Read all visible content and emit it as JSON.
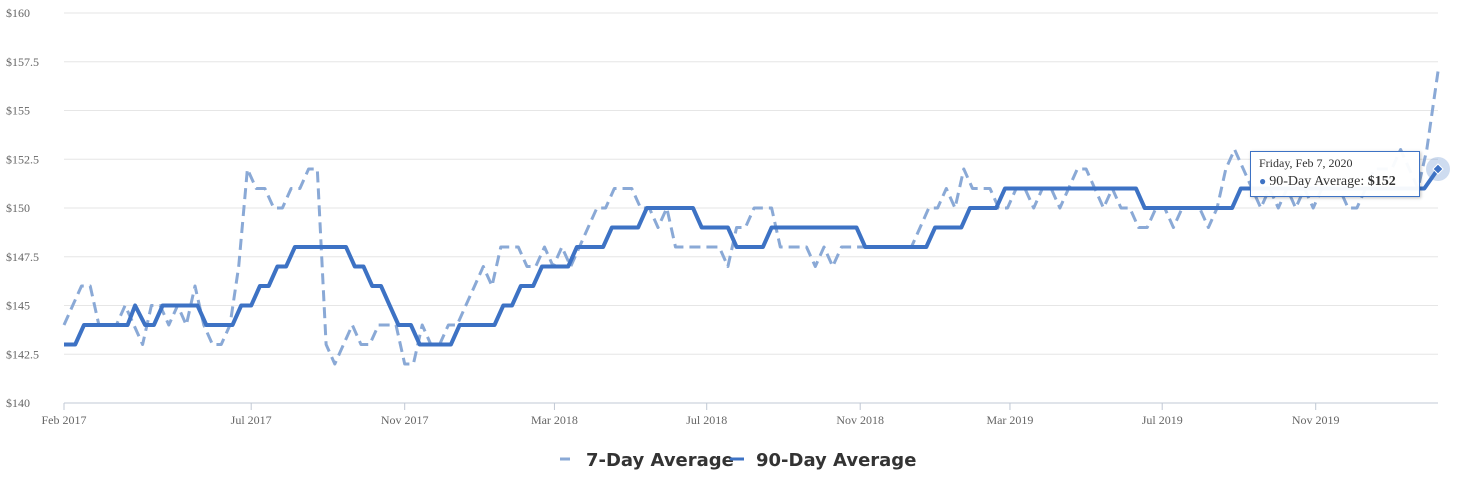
{
  "chart_data": {
    "type": "line",
    "title": "",
    "xlabel": "",
    "ylabel": "",
    "x_ticks": [
      "Feb 2017",
      "Jul 2017",
      "Nov 2017",
      "Mar 2018",
      "Jul 2018",
      "Nov 2018",
      "Mar 2019",
      "Jul 2019",
      "Nov 2019"
    ],
    "y_ticks": [
      "$140",
      "$142.5",
      "$145",
      "$147.5",
      "$150",
      "$152.5",
      "$155",
      "$157.5",
      "$160"
    ],
    "ylim": [
      140,
      160
    ],
    "xlim": [
      "2017-02-01",
      "2020-02-07"
    ],
    "grid": "horizontal",
    "legend_position": "bottom-center",
    "series": [
      {
        "name": "7-Day Average",
        "color": "#8aa9d6",
        "style": "dashed",
        "points": [
          [
            "2017-02-01",
            144
          ],
          [
            "2017-02-08",
            145
          ],
          [
            "2017-02-15",
            146
          ],
          [
            "2017-02-22",
            146
          ],
          [
            "2017-03-01",
            144
          ],
          [
            "2017-03-08",
            144
          ],
          [
            "2017-03-15",
            144
          ],
          [
            "2017-03-22",
            145
          ],
          [
            "2017-03-29",
            144
          ],
          [
            "2017-04-05",
            143
          ],
          [
            "2017-04-12",
            145
          ],
          [
            "2017-04-19",
            145
          ],
          [
            "2017-04-26",
            144
          ],
          [
            "2017-05-03",
            145
          ],
          [
            "2017-05-10",
            144
          ],
          [
            "2017-05-17",
            146
          ],
          [
            "2017-05-24",
            144
          ],
          [
            "2017-05-31",
            143
          ],
          [
            "2017-06-07",
            143
          ],
          [
            "2017-06-14",
            144
          ],
          [
            "2017-06-21",
            147
          ],
          [
            "2017-06-28",
            152
          ],
          [
            "2017-07-05",
            151
          ],
          [
            "2017-07-12",
            151
          ],
          [
            "2017-07-19",
            150
          ],
          [
            "2017-07-26",
            150
          ],
          [
            "2017-08-02",
            151
          ],
          [
            "2017-08-09",
            151
          ],
          [
            "2017-08-16",
            152
          ],
          [
            "2017-08-23",
            152
          ],
          [
            "2017-08-30",
            143
          ],
          [
            "2017-09-06",
            142
          ],
          [
            "2017-09-13",
            143
          ],
          [
            "2017-09-20",
            144
          ],
          [
            "2017-09-27",
            143
          ],
          [
            "2017-10-04",
            143
          ],
          [
            "2017-10-11",
            144
          ],
          [
            "2017-10-18",
            144
          ],
          [
            "2017-10-25",
            144
          ],
          [
            "2017-11-01",
            142
          ],
          [
            "2017-11-08",
            142
          ],
          [
            "2017-11-15",
            144
          ],
          [
            "2017-11-22",
            143
          ],
          [
            "2017-11-29",
            143
          ],
          [
            "2017-12-06",
            144
          ],
          [
            "2017-12-13",
            144
          ],
          [
            "2017-12-20",
            145
          ],
          [
            "2017-12-27",
            146
          ],
          [
            "2018-01-03",
            147
          ],
          [
            "2018-01-10",
            146
          ],
          [
            "2018-01-17",
            148
          ],
          [
            "2018-01-24",
            148
          ],
          [
            "2018-01-31",
            148
          ],
          [
            "2018-02-07",
            147
          ],
          [
            "2018-02-14",
            147
          ],
          [
            "2018-02-21",
            148
          ],
          [
            "2018-02-28",
            147
          ],
          [
            "2018-03-07",
            148
          ],
          [
            "2018-03-14",
            147
          ],
          [
            "2018-03-21",
            148
          ],
          [
            "2018-03-28",
            149
          ],
          [
            "2018-04-04",
            150
          ],
          [
            "2018-04-11",
            150
          ],
          [
            "2018-04-18",
            151
          ],
          [
            "2018-04-25",
            151
          ],
          [
            "2018-05-02",
            151
          ],
          [
            "2018-05-09",
            150
          ],
          [
            "2018-05-16",
            150
          ],
          [
            "2018-05-23",
            149
          ],
          [
            "2018-05-30",
            150
          ],
          [
            "2018-06-06",
            148
          ],
          [
            "2018-06-13",
            148
          ],
          [
            "2018-06-20",
            148
          ],
          [
            "2018-06-27",
            148
          ],
          [
            "2018-07-04",
            148
          ],
          [
            "2018-07-11",
            148
          ],
          [
            "2018-07-18",
            147
          ],
          [
            "2018-07-25",
            149
          ],
          [
            "2018-08-01",
            149
          ],
          [
            "2018-08-08",
            150
          ],
          [
            "2018-08-15",
            150
          ],
          [
            "2018-08-22",
            150
          ],
          [
            "2018-08-29",
            148
          ],
          [
            "2018-09-05",
            148
          ],
          [
            "2018-09-12",
            148
          ],
          [
            "2018-09-19",
            148
          ],
          [
            "2018-09-26",
            147
          ],
          [
            "2018-10-03",
            148
          ],
          [
            "2018-10-10",
            147
          ],
          [
            "2018-10-17",
            148
          ],
          [
            "2018-10-24",
            148
          ],
          [
            "2018-10-31",
            148
          ],
          [
            "2018-11-07",
            148
          ],
          [
            "2018-11-14",
            148
          ],
          [
            "2018-11-21",
            148
          ],
          [
            "2018-11-28",
            148
          ],
          [
            "2018-12-05",
            148
          ],
          [
            "2018-12-12",
            148
          ],
          [
            "2018-12-19",
            149
          ],
          [
            "2018-12-26",
            150
          ],
          [
            "2019-01-02",
            150
          ],
          [
            "2019-01-09",
            151
          ],
          [
            "2019-01-16",
            150
          ],
          [
            "2019-01-23",
            152
          ],
          [
            "2019-01-30",
            151
          ],
          [
            "2019-02-06",
            151
          ],
          [
            "2019-02-13",
            151
          ],
          [
            "2019-02-20",
            150
          ],
          [
            "2019-02-27",
            150
          ],
          [
            "2019-03-06",
            151
          ],
          [
            "2019-03-13",
            151
          ],
          [
            "2019-03-20",
            150
          ],
          [
            "2019-03-27",
            151
          ],
          [
            "2019-04-03",
            151
          ],
          [
            "2019-04-10",
            150
          ],
          [
            "2019-04-17",
            151
          ],
          [
            "2019-04-24",
            152
          ],
          [
            "2019-05-01",
            152
          ],
          [
            "2019-05-08",
            151
          ],
          [
            "2019-05-15",
            150
          ],
          [
            "2019-05-22",
            151
          ],
          [
            "2019-05-29",
            150
          ],
          [
            "2019-06-05",
            150
          ],
          [
            "2019-06-12",
            149
          ],
          [
            "2019-06-19",
            149
          ],
          [
            "2019-06-26",
            150
          ],
          [
            "2019-07-03",
            150
          ],
          [
            "2019-07-10",
            149
          ],
          [
            "2019-07-17",
            150
          ],
          [
            "2019-07-24",
            150
          ],
          [
            "2019-07-31",
            150
          ],
          [
            "2019-08-07",
            149
          ],
          [
            "2019-08-14",
            150
          ],
          [
            "2019-08-21",
            152
          ],
          [
            "2019-08-28",
            153
          ],
          [
            "2019-09-04",
            152
          ],
          [
            "2019-09-11",
            151
          ],
          [
            "2019-09-18",
            150
          ],
          [
            "2019-09-25",
            151
          ],
          [
            "2019-10-02",
            150
          ],
          [
            "2019-10-09",
            151
          ],
          [
            "2019-10-16",
            150
          ],
          [
            "2019-10-23",
            151
          ],
          [
            "2019-10-30",
            150
          ],
          [
            "2019-11-06",
            151
          ],
          [
            "2019-11-13",
            151
          ],
          [
            "2019-11-20",
            151
          ],
          [
            "2019-11-27",
            150
          ],
          [
            "2019-12-04",
            150
          ],
          [
            "2019-12-11",
            151
          ],
          [
            "2019-12-18",
            152
          ],
          [
            "2019-12-25",
            152
          ],
          [
            "2020-01-01",
            152
          ],
          [
            "2020-01-08",
            153
          ],
          [
            "2020-01-15",
            152
          ],
          [
            "2020-01-22",
            151
          ],
          [
            "2020-01-29",
            153
          ],
          [
            "2020-02-07",
            157
          ]
        ]
      },
      {
        "name": "90-Day Average",
        "color": "#3d72c4",
        "style": "solid",
        "points": [
          [
            "2017-02-01",
            143
          ],
          [
            "2017-02-10",
            143
          ],
          [
            "2017-02-17",
            144
          ],
          [
            "2017-03-15",
            144
          ],
          [
            "2017-03-24",
            144
          ],
          [
            "2017-03-30",
            145
          ],
          [
            "2017-04-07",
            144
          ],
          [
            "2017-04-14",
            144
          ],
          [
            "2017-04-21",
            145
          ],
          [
            "2017-05-19",
            145
          ],
          [
            "2017-05-26",
            144
          ],
          [
            "2017-06-16",
            144
          ],
          [
            "2017-06-23",
            145
          ],
          [
            "2017-07-01",
            145
          ],
          [
            "2017-07-08",
            146
          ],
          [
            "2017-07-15",
            146
          ],
          [
            "2017-07-22",
            147
          ],
          [
            "2017-07-29",
            147
          ],
          [
            "2017-08-05",
            148
          ],
          [
            "2017-09-15",
            148
          ],
          [
            "2017-09-22",
            147
          ],
          [
            "2017-09-29",
            147
          ],
          [
            "2017-10-06",
            146
          ],
          [
            "2017-10-13",
            146
          ],
          [
            "2017-10-20",
            145
          ],
          [
            "2017-10-27",
            144
          ],
          [
            "2017-11-06",
            144
          ],
          [
            "2017-11-13",
            143
          ],
          [
            "2017-12-08",
            143
          ],
          [
            "2017-12-15",
            144
          ],
          [
            "2018-01-12",
            144
          ],
          [
            "2018-01-19",
            145
          ],
          [
            "2018-01-26",
            145
          ],
          [
            "2018-02-02",
            146
          ],
          [
            "2018-02-12",
            146
          ],
          [
            "2018-02-19",
            147
          ],
          [
            "2018-03-12",
            147
          ],
          [
            "2018-03-19",
            148
          ],
          [
            "2018-04-09",
            148
          ],
          [
            "2018-04-16",
            149
          ],
          [
            "2018-05-07",
            149
          ],
          [
            "2018-05-14",
            150
          ],
          [
            "2018-06-20",
            150
          ],
          [
            "2018-06-27",
            149
          ],
          [
            "2018-07-18",
            149
          ],
          [
            "2018-07-25",
            148
          ],
          [
            "2018-08-15",
            148
          ],
          [
            "2018-08-22",
            149
          ],
          [
            "2018-10-29",
            149
          ],
          [
            "2018-11-05",
            148
          ],
          [
            "2018-12-24",
            148
          ],
          [
            "2018-12-31",
            149
          ],
          [
            "2019-01-21",
            149
          ],
          [
            "2019-01-28",
            150
          ],
          [
            "2019-02-18",
            150
          ],
          [
            "2019-02-25",
            151
          ],
          [
            "2019-06-10",
            151
          ],
          [
            "2019-06-17",
            150
          ],
          [
            "2019-08-26",
            150
          ],
          [
            "2019-09-02",
            151
          ],
          [
            "2019-11-04",
            151
          ],
          [
            "2019-11-11",
            151
          ],
          [
            "2020-01-13",
            151
          ],
          [
            "2020-01-27",
            151
          ],
          [
            "2020-02-07",
            152
          ]
        ]
      }
    ],
    "tooltip": {
      "date": "Friday, Feb 7, 2020",
      "series": "90-Day Average:",
      "value": "$152"
    }
  },
  "legend": {
    "items": [
      {
        "label": "7-Day Average",
        "color": "#8aa9d6",
        "style": "dashed"
      },
      {
        "label": "90-Day Average",
        "color": "#3d72c4",
        "style": "solid"
      }
    ]
  }
}
